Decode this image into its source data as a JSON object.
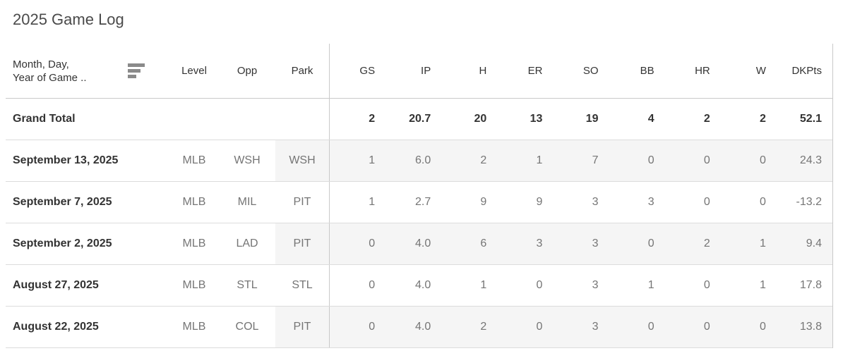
{
  "title": "2025 Game Log",
  "colors": {
    "title_text": "#4a4a4a",
    "dark_text": "#333333",
    "gray_text": "#757575",
    "band_gray": "#f5f5f5",
    "pane_divider": "#c9c9c9",
    "row_divider": "#dcdcdc",
    "sort_icon": "#8a8a8a"
  },
  "table": {
    "header": {
      "date_line1": "Month, Day,",
      "date_line2": "Year of Game ..",
      "sort_icon": "sort-descending-icon",
      "level": "Level",
      "opp": "Opp",
      "park": "Park",
      "measures": [
        "GS",
        "IP",
        "H",
        "ER",
        "SO",
        "BB",
        "HR",
        "W",
        "DKPts"
      ]
    },
    "grand_total": {
      "label": "Grand Total",
      "values": [
        "2",
        "20.7",
        "20",
        "13",
        "19",
        "4",
        "2",
        "2",
        "52.1"
      ]
    },
    "rows": [
      {
        "date": "September 13, 2025",
        "level": "MLB",
        "opp": "WSH",
        "park": "WSH",
        "values": [
          "1",
          "6.0",
          "2",
          "1",
          "7",
          "0",
          "0",
          "0",
          "24.3"
        ],
        "shaded": true
      },
      {
        "date": "September 7, 2025",
        "level": "MLB",
        "opp": "MIL",
        "park": "PIT",
        "values": [
          "1",
          "2.7",
          "9",
          "9",
          "3",
          "3",
          "0",
          "0",
          "-13.2"
        ],
        "shaded": false
      },
      {
        "date": "September 2, 2025",
        "level": "MLB",
        "opp": "LAD",
        "park": "PIT",
        "values": [
          "0",
          "4.0",
          "6",
          "3",
          "3",
          "0",
          "2",
          "1",
          "9.4"
        ],
        "shaded": true
      },
      {
        "date": "August 27, 2025",
        "level": "MLB",
        "opp": "STL",
        "park": "STL",
        "values": [
          "0",
          "4.0",
          "1",
          "0",
          "3",
          "1",
          "0",
          "1",
          "17.8"
        ],
        "shaded": false
      },
      {
        "date": "August 22, 2025",
        "level": "MLB",
        "opp": "COL",
        "park": "PIT",
        "values": [
          "0",
          "4.0",
          "2",
          "0",
          "3",
          "0",
          "0",
          "0",
          "13.8"
        ],
        "shaded": true
      }
    ]
  },
  "chart_data": {
    "type": "table",
    "title": "2025 Game Log",
    "columns": [
      "Month, Day, Year of Game",
      "Level",
      "Opp",
      "Park",
      "GS",
      "IP",
      "H",
      "ER",
      "SO",
      "BB",
      "HR",
      "W",
      "DKPts"
    ],
    "rows": [
      [
        "September 13, 2025",
        "MLB",
        "WSH",
        "WSH",
        1,
        6.0,
        2,
        1,
        7,
        0,
        0,
        0,
        24.3
      ],
      [
        "September 7, 2025",
        "MLB",
        "MIL",
        "PIT",
        1,
        2.7,
        9,
        9,
        3,
        3,
        0,
        0,
        -13.2
      ],
      [
        "September 2, 2025",
        "MLB",
        "LAD",
        "PIT",
        0,
        4.0,
        6,
        3,
        3,
        0,
        2,
        1,
        9.4
      ],
      [
        "August 27, 2025",
        "MLB",
        "STL",
        "STL",
        0,
        4.0,
        1,
        0,
        3,
        1,
        0,
        1,
        17.8
      ],
      [
        "August 22, 2025",
        "MLB",
        "COL",
        "PIT",
        0,
        4.0,
        2,
        0,
        3,
        0,
        0,
        0,
        13.8
      ]
    ],
    "grand_total": [
      "Grand Total",
      "",
      "",
      "",
      2,
      20.7,
      20,
      13,
      19,
      4,
      2,
      2,
      52.1
    ],
    "sort": "Month, Day, Year of Game descending"
  }
}
